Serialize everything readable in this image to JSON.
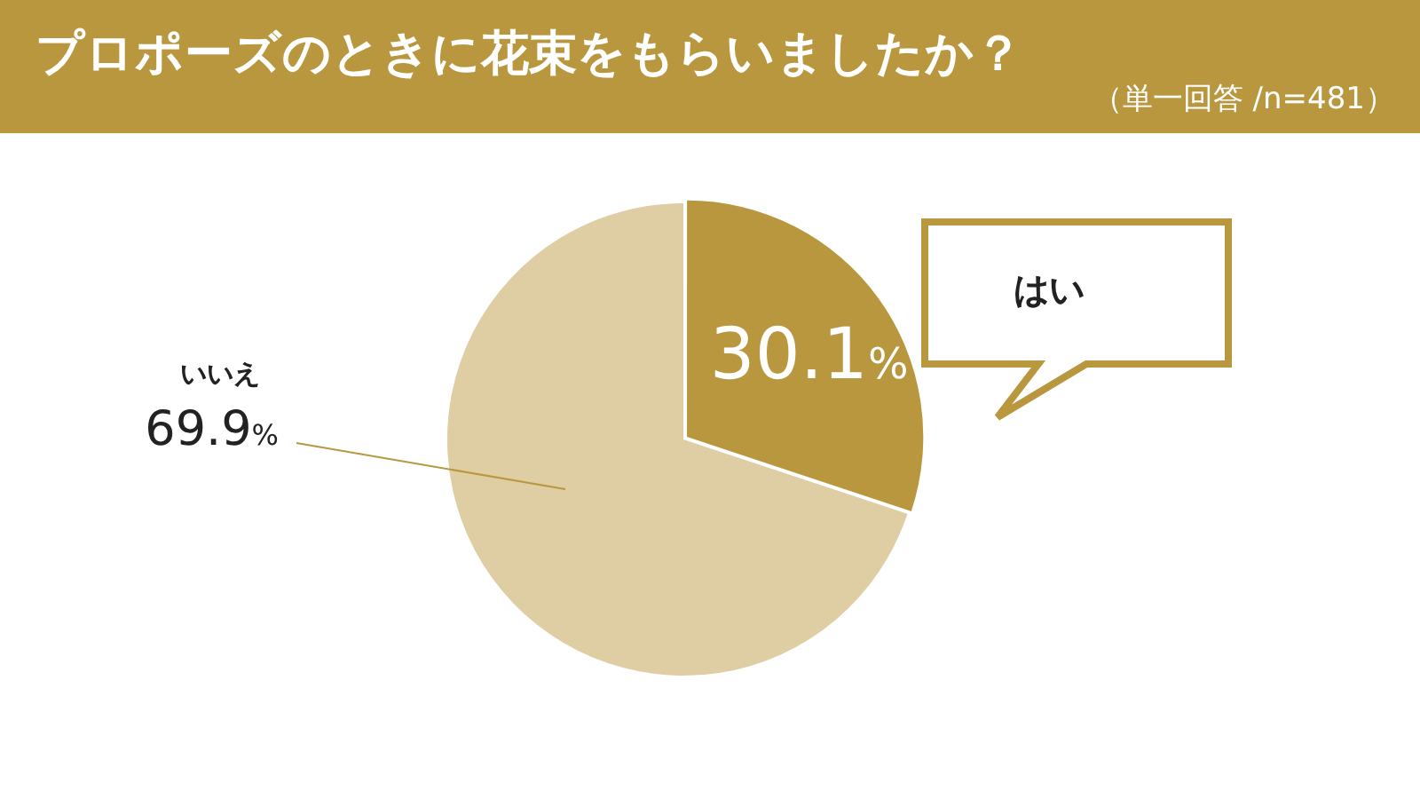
{
  "chart_data": {
    "type": "pie",
    "title": "プロポーズのときに花束をもらいましたか？",
    "subtitle": "（単一回答 /n=481）",
    "categories": [
      "はい",
      "いいえ"
    ],
    "values": [
      30.1,
      69.9
    ],
    "colors": [
      "#b8973e",
      "#dfcda4"
    ],
    "value_labels": [
      "30.1%",
      "69.9%"
    ],
    "legend": false
  }
}
